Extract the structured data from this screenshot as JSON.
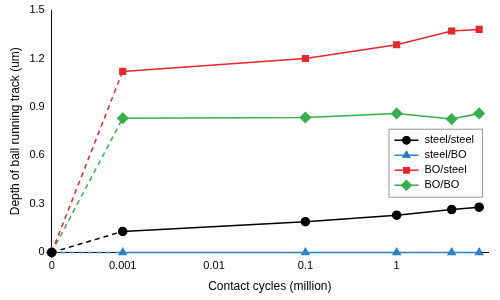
{
  "chart_data": {
    "type": "line",
    "x": [
      0,
      0.001,
      0.1,
      1,
      4,
      8
    ],
    "series": [
      {
        "name": "steel/steel",
        "color": "#000000",
        "marker": "circle",
        "values": [
          0,
          0.13,
          0.19,
          0.23,
          0.265,
          0.28
        ]
      },
      {
        "name": "steel/BO",
        "color": "#2e80c6",
        "marker": "triangle",
        "values": [
          0,
          0,
          0,
          0,
          0,
          0
        ]
      },
      {
        "name": "BO/steel",
        "color": "#e8262b",
        "marker": "square",
        "values": [
          0,
          1.12,
          1.2,
          1.285,
          1.37,
          1.38
        ]
      },
      {
        "name": "BO/BO",
        "color": "#35b04a",
        "marker": "diamond",
        "values": [
          0,
          0.83,
          0.835,
          0.86,
          0.825,
          0.86
        ]
      }
    ],
    "xlabel": "Contact cycles (million)",
    "ylabel": "Depth of ball running track (um)",
    "xlim": [
      0,
      10
    ],
    "xticks": [
      0,
      0.001,
      0.01,
      0.1,
      1
    ],
    "ylim": [
      0,
      1.5
    ],
    "yticks": [
      0,
      0.3,
      0.6,
      0.9,
      1.2,
      1.5
    ],
    "log": "x",
    "grid": false,
    "legend": "right"
  }
}
